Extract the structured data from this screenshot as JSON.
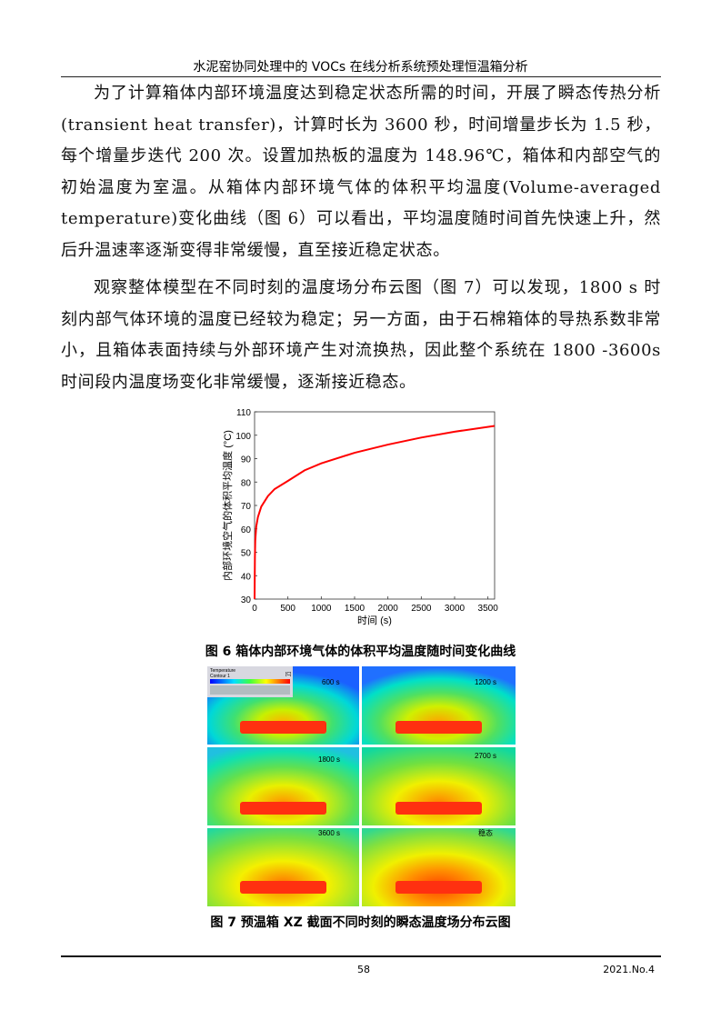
{
  "header": {
    "title": "水泥窑协同处理中的 VOCs 在线分析系统预处理恒温箱分析"
  },
  "paragraphs": [
    "为了计算箱体内部环境温度达到稳定状态所需的时间，开展了瞬态传热分析(transient heat transfer)，计算时长为 3600 秒，时间增量步长为 1.5 秒，每个增量步迭代 200 次。设置加热板的温度为 148.96℃，箱体和内部空气的初始温度为室温。从箱体内部环境气体的体积平均温度(Volume-averaged temperature)变化曲线（图 6）可以看出，平均温度随时间首先快速上升，然后升温速率逐渐变得非常缓慢，直至接近稳定状态。",
    "观察整体模型在不同时刻的温度场分布云图（图 7）可以发现，1800 s 时刻内部气体环境的温度已经较为稳定；另一方面，由于石棉箱体的导热系数非常小，且箱体表面持续与外部环境产生对流换热，因此整个系统在 1800 -3600s 时间段内温度场变化非常缓慢，逐渐接近稳态。"
  ],
  "chart_data": {
    "type": "line",
    "x_label": "时间 (s)",
    "y_label": "内部环境空气的体积平均温度 (°C)",
    "x": [
      0,
      5,
      10,
      25,
      50,
      100,
      200,
      300,
      500,
      750,
      1000,
      1500,
      2000,
      2500,
      3000,
      3600
    ],
    "series": [
      {
        "name": "体积平均温度",
        "color": "#ff0000",
        "values": [
          30,
          48,
          55,
          61,
          65,
          69.5,
          74,
          77,
          80.5,
          85,
          88,
          92.5,
          96,
          99,
          101.5,
          104
        ]
      }
    ],
    "xlim": [
      0,
      3600
    ],
    "xticks": [
      0,
      500,
      1000,
      1500,
      2000,
      2500,
      3000,
      3500
    ],
    "ylim": [
      30,
      110
    ],
    "yticks": [
      30,
      40,
      50,
      60,
      70,
      80,
      90,
      100,
      110
    ],
    "grid": false
  },
  "captions": [
    "图 6 箱体内部环境气体的体积平均温度随时间变化曲线",
    "图 7 预温箱 XZ 截面不同时刻的瞬态温度场分布云图"
  ],
  "figure7": {
    "legend_title": "Temperature",
    "legend_sub": "Contour 1",
    "legend_unit": "[C]",
    "panels": [
      "600 s",
      "1200 s",
      "1800 s",
      "2700 s",
      "3600 s",
      "稳态"
    ]
  },
  "footer": {
    "page": "58",
    "issue": "2021.No.4"
  }
}
